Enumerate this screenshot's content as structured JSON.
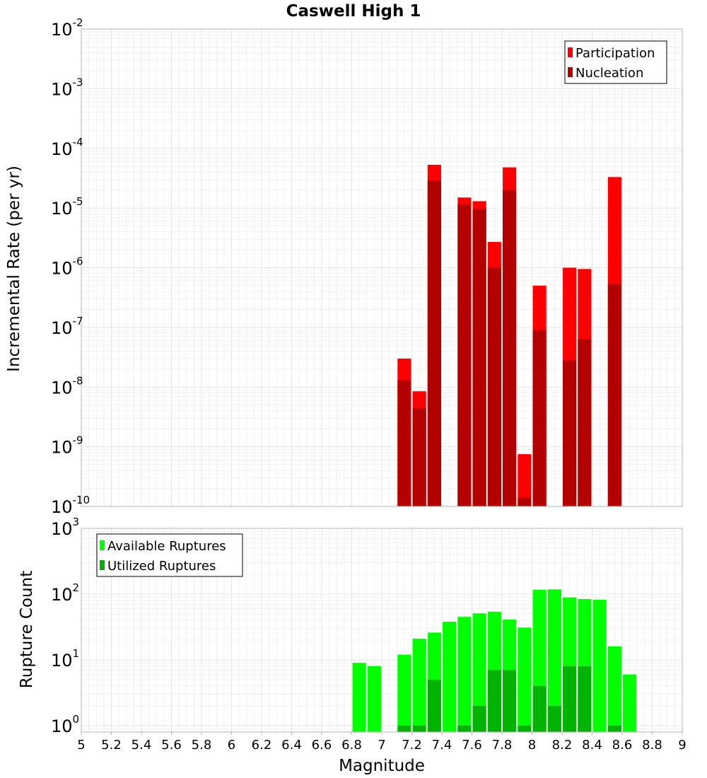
{
  "chart_data": [
    {
      "type": "bar",
      "title": "Caswell High 1",
      "xlabel": "Magnitude",
      "ylabel": "Incremental Rate (per yr)",
      "yscale": "log",
      "xlim": [
        5,
        9
      ],
      "ylim": [
        1e-10,
        0.01
      ],
      "grid": true,
      "legend_position": "top-right",
      "bar_width": 0.09,
      "y_ticks": [
        {
          "base": "10",
          "exp": "-10"
        },
        {
          "base": "10",
          "exp": "-9"
        },
        {
          "base": "10",
          "exp": "-8"
        },
        {
          "base": "10",
          "exp": "-7"
        },
        {
          "base": "10",
          "exp": "-6"
        },
        {
          "base": "10",
          "exp": "-5"
        },
        {
          "base": "10",
          "exp": "-4"
        },
        {
          "base": "10",
          "exp": "-3"
        },
        {
          "base": "10",
          "exp": "-2"
        }
      ],
      "series": [
        {
          "name": "Participation",
          "color": "#ff0000",
          "x": [
            7.15,
            7.25,
            7.35,
            7.55,
            7.65,
            7.75,
            7.85,
            7.95,
            8.05,
            8.25,
            8.35,
            8.55
          ],
          "values": [
            3e-08,
            8.5e-09,
            5.3e-05,
            1.5e-05,
            1.3e-05,
            2.7e-06,
            4.8e-05,
            7.5e-10,
            5e-07,
            1e-06,
            9.5e-07,
            3.3e-05
          ]
        },
        {
          "name": "Nucleation",
          "color": "#b30000",
          "x": [
            7.15,
            7.25,
            7.35,
            7.55,
            7.65,
            7.75,
            7.85,
            7.95,
            8.05,
            8.25,
            8.35,
            8.55
          ],
          "values": [
            1.3e-08,
            4.4e-09,
            2.9e-05,
            1.15e-05,
            9.6e-06,
            1e-06,
            2e-05,
            1.4e-10,
            9e-08,
            2.8e-08,
            6.3e-08,
            5.3e-07
          ]
        }
      ]
    },
    {
      "type": "bar",
      "xlabel": "Magnitude",
      "ylabel": "Rupture Count",
      "yscale": "log",
      "xlim": [
        5,
        9
      ],
      "ylim": [
        0.8,
        1000
      ],
      "grid": true,
      "legend_position": "top-left",
      "bar_width": 0.09,
      "x_ticks": [
        "5",
        "5.2",
        "5.4",
        "5.6",
        "5.8",
        "6",
        "6.2",
        "6.4",
        "6.6",
        "6.8",
        "7",
        "7.2",
        "7.4",
        "7.6",
        "7.8",
        "8",
        "8.2",
        "8.4",
        "8.6",
        "8.8",
        "9"
      ],
      "y_ticks": [
        {
          "base": "10",
          "exp": "0"
        },
        {
          "base": "10",
          "exp": "1"
        },
        {
          "base": "10",
          "exp": "2"
        },
        {
          "base": "10",
          "exp": "3"
        }
      ],
      "series": [
        {
          "name": "Available Ruptures",
          "color": "#00ff00",
          "x": [
            6.85,
            6.95,
            7.15,
            7.25,
            7.35,
            7.45,
            7.55,
            7.65,
            7.75,
            7.85,
            7.95,
            8.05,
            8.15,
            8.25,
            8.35,
            8.45,
            8.55,
            8.65
          ],
          "values": [
            9,
            8,
            12,
            21,
            26,
            38,
            45,
            51,
            54,
            41,
            31,
            116,
            118,
            89,
            84,
            82,
            16,
            6
          ]
        },
        {
          "name": "Utilized Ruptures",
          "color": "#00b300",
          "x": [
            7.15,
            7.25,
            7.35,
            7.55,
            7.65,
            7.75,
            7.85,
            7.95,
            8.05,
            8.15,
            8.25,
            8.35,
            8.55
          ],
          "values": [
            1,
            1,
            5,
            1,
            2,
            7,
            7,
            1,
            4,
            2,
            8,
            8,
            1
          ]
        }
      ]
    }
  ]
}
